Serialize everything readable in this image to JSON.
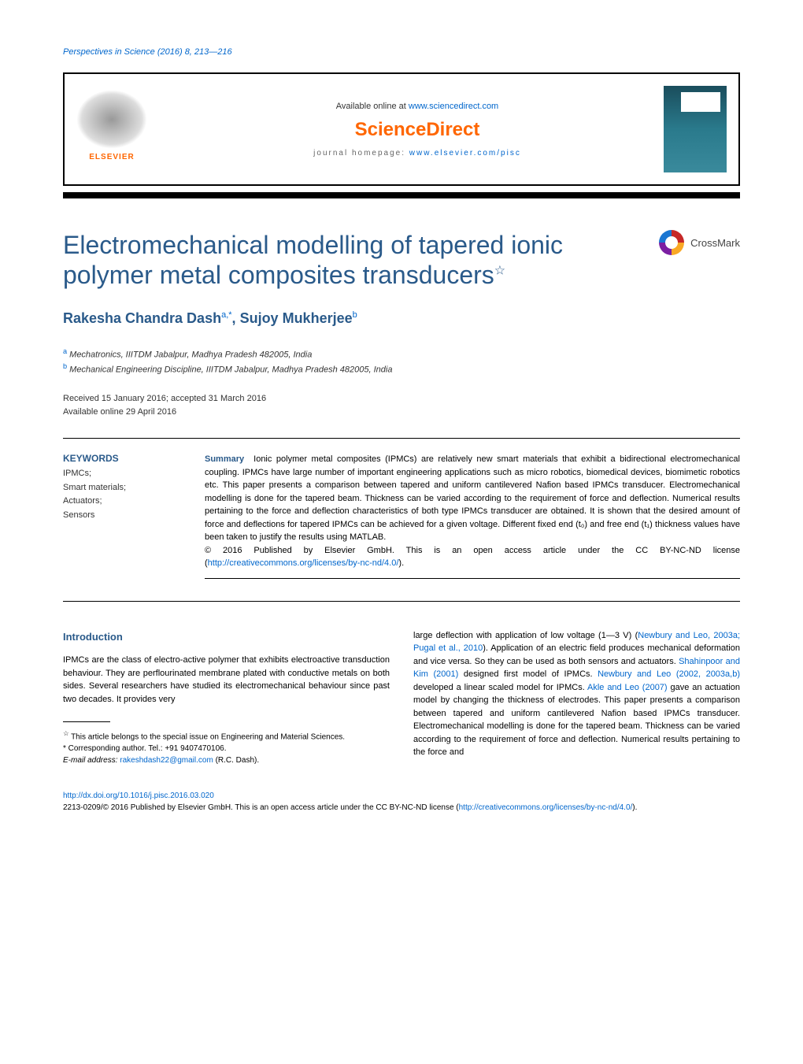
{
  "journal_ref": "Perspectives in Science (2016) 8, 213—216",
  "header": {
    "elsevier": "ELSEVIER",
    "available": "Available online at ",
    "available_url": "www.sciencedirect.com",
    "sciencedirect": "ScienceDirect",
    "homepage_prefix": "journal homepage: ",
    "homepage_url": "www.elsevier.com/pisc"
  },
  "title": "Electromechanical modelling of tapered ionic polymer metal composites transducers",
  "title_star": "☆",
  "crossmark": "CrossMark",
  "authors": {
    "a1_name": "Rakesha Chandra Dash",
    "a1_sup": "a,*",
    "a2_name": "Sujoy Mukherjee",
    "a2_sup": "b"
  },
  "affiliations": {
    "a_sup": "a",
    "a": " Mechatronics, IIITDM Jabalpur, Madhya Pradesh 482005, India",
    "b_sup": "b",
    "b": " Mechanical Engineering Discipline, IIITDM Jabalpur, Madhya Pradesh 482005, India"
  },
  "dates": {
    "received": "Received 15 January 2016; accepted 31 March 2016",
    "online": "Available online 29 April 2016"
  },
  "keywords": {
    "heading": "KEYWORDS",
    "k1": "IPMCs;",
    "k2": "Smart materials;",
    "k3": "Actuators;",
    "k4": "Sensors"
  },
  "summary": {
    "heading": "Summary",
    "text": "Ionic polymer metal composites (IPMCs) are relatively new smart materials that exhibit a bidirectional electromechanical coupling. IPMCs have large number of important engineering applications such as micro robotics, biomedical devices, biomimetic robotics etc. This paper presents a comparison between tapered and uniform cantilevered Nafion based IPMCs transducer. Electromechanical modelling is done for the tapered beam. Thickness can be varied according to the requirement of force and deflection. Numerical results pertaining to the force and deflection characteristics of both type IPMCs transducer are obtained. It is shown that the desired amount of force and deflections for tapered IPMCs can be achieved for a given voltage. Different fixed end (t₀) and free end (t₁) thickness values have been taken to justify the results using MATLAB.",
    "copyright": "© 2016 Published by Elsevier GmbH. This is an open access article under the CC BY-NC-ND license (",
    "license_url": "http://creativecommons.org/licenses/by-nc-nd/4.0/",
    "copyright_close": ")."
  },
  "body": {
    "intro_heading": "Introduction",
    "left_p1": "IPMCs are the class of electro-active polymer that exhibits electroactive transduction behaviour. They are perflourinated membrane plated with conductive metals on both sides. Several researchers have studied its electromechanical behaviour since past two decades. It provides very",
    "right_p1_a": "large deflection with application of low voltage (1—3 V) (",
    "right_ref1": "Newbury and Leo, 2003a; Pugal et al., 2010",
    "right_p1_b": "). Application of an electric field produces mechanical deformation and vice versa. So they can be used as both sensors and actuators. ",
    "right_ref2": "Shahinpoor and Kim (2001)",
    "right_p1_c": " designed first model of IPMCs. ",
    "right_ref3": "Newbury and Leo (2002, 2003a,b)",
    "right_p1_d": " developed a linear scaled model for IPMCs. ",
    "right_ref4": "Akle and Leo (2007)",
    "right_p1_e": " gave an actuation model by changing the thickness of electrodes. This paper presents a comparison between tapered and uniform cantilevered Nafion based IPMCs transducer. Electromechanical modelling is done for the tapered beam. Thickness can be varied according to the requirement of force and deflection. Numerical results pertaining to the force and"
  },
  "footnotes": {
    "star": "☆",
    "f1": " This article belongs to the special issue on Engineering and Material Sciences.",
    "corr": "* Corresponding author. Tel.: +91 9407470106.",
    "email_label": "E-mail address: ",
    "email": "rakeshdash22@gmail.com",
    "email_suffix": " (R.C. Dash)."
  },
  "footer": {
    "doi": "http://dx.doi.org/10.1016/j.pisc.2016.03.020",
    "issn_copy": "2213-0209/© 2016 Published by Elsevier GmbH. This is an open access article under the CC BY-NC-ND license (",
    "license": "http://creativecommons.org/licenses/by-nc-nd/4.0/",
    "close": ")."
  },
  "colors": {
    "heading_blue": "#2a5a8a",
    "link_blue": "#0066cc",
    "orange": "#ff6600"
  }
}
